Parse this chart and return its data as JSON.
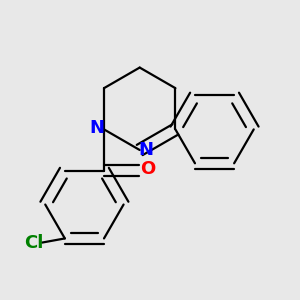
{
  "background_color": "#e8e8e8",
  "bond_color": "#000000",
  "nitrogen_color": "#0000ff",
  "oxygen_color": "#ff0000",
  "chlorine_color": "#008000",
  "line_width": 1.6,
  "font_size_atoms": 13,
  "fig_size": [
    3.0,
    3.0
  ],
  "dpi": 100,
  "xlim": [
    -0.5,
    1.2
  ],
  "ylim": [
    -1.1,
    0.9
  ]
}
